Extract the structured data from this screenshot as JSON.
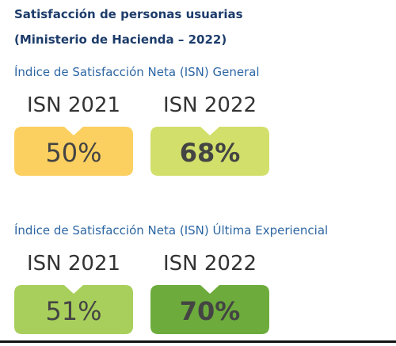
{
  "header": {
    "title": "Satisfacción de personas usuarias",
    "subtitle": "(Ministerio de Hacienda – 2022)"
  },
  "sections": [
    {
      "label": "Índice de Satisfacción Neta (ISN) General",
      "items": [
        {
          "label": "ISN 2021",
          "value": "50%",
          "color": "#fbd060",
          "bold": false
        },
        {
          "label": "ISN 2022",
          "value": "68%",
          "color": "#d2e06b",
          "bold": true
        }
      ]
    },
    {
      "label": "Índice de Satisfacción Neta (ISN) Última Experiencial",
      "items": [
        {
          "label": "ISN 2021",
          "value": "51%",
          "color": "#a8cf5b",
          "bold": false
        },
        {
          "label": "ISN 2022",
          "value": "70%",
          "color": "#6dac3c",
          "bold": true
        }
      ]
    }
  ]
}
